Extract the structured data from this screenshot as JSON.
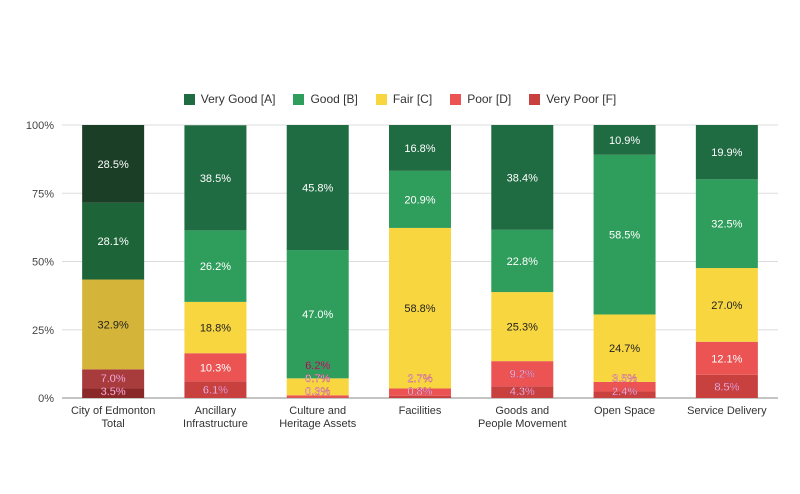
{
  "chart_data": {
    "type": "bar",
    "stacked": "percent",
    "categories": [
      [
        "City of Edmonton",
        "Total"
      ],
      [
        "Ancillary",
        "Infrastructure"
      ],
      [
        "Culture and",
        "Heritage Assets"
      ],
      [
        "Facilities"
      ],
      [
        "Goods and",
        "People Movement"
      ],
      [
        "Open Space"
      ],
      [
        "Service Delivery"
      ]
    ],
    "series": [
      {
        "name": "Very Poor [F]",
        "color": "#c8413f",
        "values": [
          3.5,
          6.1,
          0.3,
          0.8,
          4.3,
          2.4,
          8.5
        ]
      },
      {
        "name": "Poor [D]",
        "color": "#ec5353",
        "values": [
          7.0,
          10.3,
          0.7,
          2.7,
          9.2,
          3.5,
          12.1
        ]
      },
      {
        "name": "Fair [C]",
        "color": "#f8d640",
        "values": [
          32.9,
          18.8,
          6.2,
          58.8,
          25.3,
          24.7,
          27.0
        ]
      },
      {
        "name": "Good [B]",
        "color": "#2f9e5c",
        "values": [
          28.1,
          26.2,
          47.0,
          20.9,
          22.8,
          58.5,
          32.5
        ]
      },
      {
        "name": "Very Good [A]",
        "color": "#1f6b42",
        "values": [
          28.5,
          38.5,
          45.8,
          16.8,
          38.4,
          10.9,
          19.9
        ]
      }
    ],
    "first_category_colors": [
      "#8a2727",
      "#a83b3b",
      "#d5b43a",
      "#1d6539",
      "#1a3f26"
    ],
    "y_ticks": [
      "0%",
      "25%",
      "50%",
      "75%",
      "100%"
    ],
    "ylim": [
      0,
      100
    ],
    "grid": true,
    "legend_position": "top",
    "legend_order": [
      "Very Good [A]",
      "Good [B]",
      "Fair [C]",
      "Poor [D]",
      "Very Poor [F]"
    ]
  }
}
